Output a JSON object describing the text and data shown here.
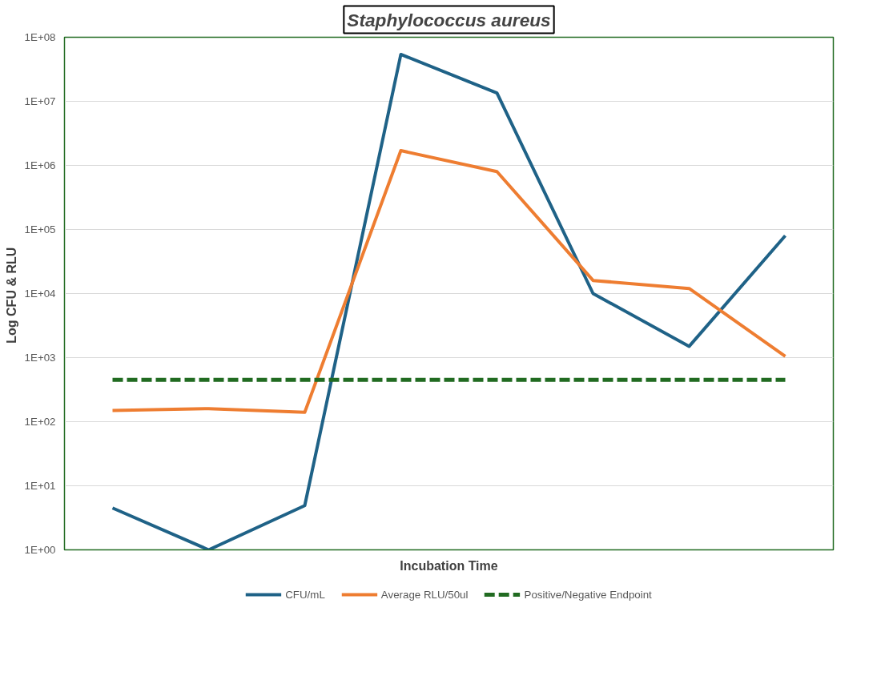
{
  "chart_data": {
    "type": "line",
    "title": "Staphylococcus aureus",
    "xlabel": "Incubation Time",
    "ylabel": "Log  CFU & RLU",
    "categories": [
      null,
      null,
      null,
      null,
      null,
      null,
      null,
      null
    ],
    "series": [
      {
        "name": "CFU/mL",
        "color": "#1f6287",
        "values": [
          4.5,
          1,
          4.9,
          54000000,
          13500000,
          10000,
          1500,
          80000
        ]
      },
      {
        "name": "Average RLU/50ul",
        "color": "#ee7d31",
        "values": [
          150,
          160,
          140,
          1700000,
          800000,
          16000,
          12000,
          1050
        ]
      },
      {
        "name": "Positive/Negative Endpoint",
        "color": "#216b21",
        "line_style": "dashed",
        "values": [
          450,
          450,
          450,
          450,
          450,
          450,
          450,
          450
        ]
      }
    ],
    "log": "y",
    "ylim": [
      1,
      100000000
    ],
    "yticks": [
      {
        "value": 1,
        "label": "1E+00"
      },
      {
        "value": 10,
        "label": "1E+01"
      },
      {
        "value": 100,
        "label": "1E+02"
      },
      {
        "value": 1000,
        "label": "1E+03"
      },
      {
        "value": 10000,
        "label": "1E+04"
      },
      {
        "value": 100000,
        "label": "1E+05"
      },
      {
        "value": 1000000,
        "label": "1E+06"
      },
      {
        "value": 10000000,
        "label": "1E+07"
      },
      {
        "value": 100000000,
        "label": "1E+08"
      }
    ],
    "grid": "y",
    "legend": "bottom",
    "marker": "none",
    "line_style": "solid"
  }
}
